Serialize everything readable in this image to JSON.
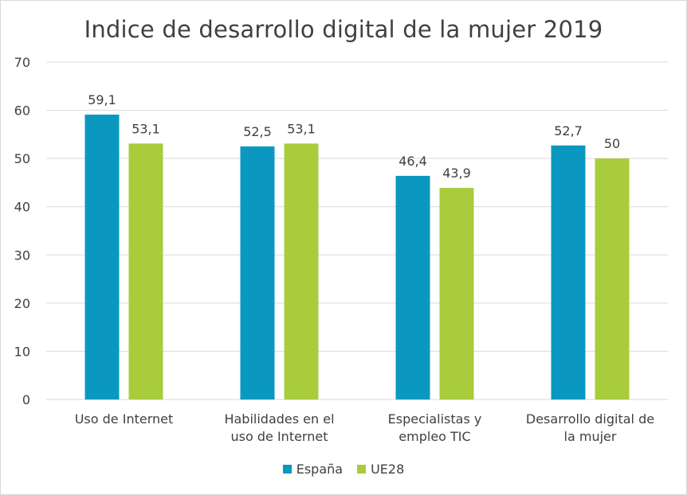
{
  "chart_data": {
    "type": "bar",
    "title": "Indice de desarrollo digital de la mujer 2019",
    "categories": [
      [
        "Uso de Internet"
      ],
      [
        "Habilidades en el",
        "uso de Internet"
      ],
      [
        "Especialistas y",
        "empleo TIC"
      ],
      [
        "Desarrollo digital de",
        "la mujer"
      ]
    ],
    "series": [
      {
        "name": "España",
        "values": [
          59.1,
          52.5,
          46.4,
          52.7
        ],
        "labels": [
          "59,1",
          "52,5",
          "46,4",
          "52,7"
        ],
        "color": "#0a98c0"
      },
      {
        "name": "UE28",
        "values": [
          53.1,
          53.1,
          43.9,
          50
        ],
        "labels": [
          "53,1",
          "53,1",
          "43,9",
          "50"
        ],
        "color": "#a8cc3c"
      }
    ],
    "ylim": [
      0,
      70
    ],
    "yticks": [
      0,
      10,
      20,
      30,
      40,
      50,
      60,
      70
    ],
    "grid": true,
    "gridColor": "#d9d9d9",
    "legend": "bottom",
    "xlabel": "",
    "ylabel": ""
  }
}
